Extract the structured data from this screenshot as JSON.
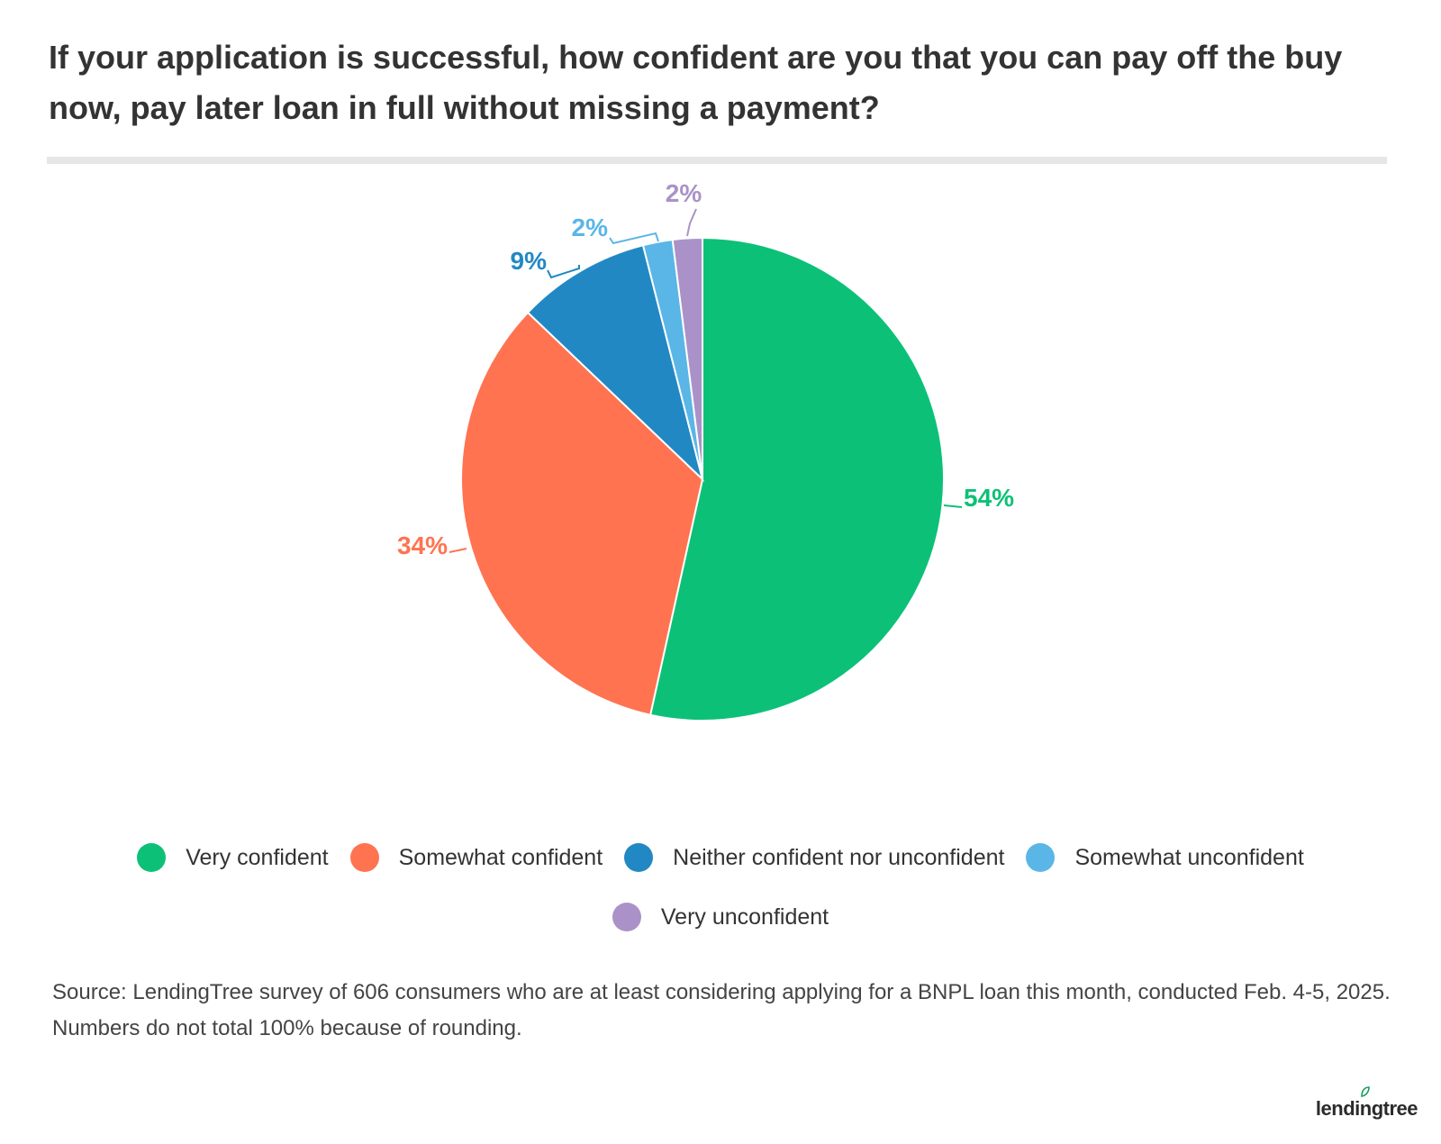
{
  "title": "If your application is successful, how confident are you that you can pay off the buy now, pay later loan in full without missing a payment?",
  "chart_data": {
    "type": "pie",
    "slices": [
      {
        "label": "Very confident",
        "value": 54,
        "display": "54%",
        "color": "#0cc177"
      },
      {
        "label": "Somewhat confident",
        "value": 34,
        "display": "34%",
        "color": "#ff7350"
      },
      {
        "label": "Neither confident nor unconfident",
        "value": 9,
        "display": "9%",
        "color": "#2188c4"
      },
      {
        "label": "Somewhat unconfident",
        "value": 2,
        "display": "2%",
        "color": "#5ab6e6"
      },
      {
        "label": "Very unconfident",
        "value": 2,
        "display": "2%",
        "color": "#aa92c8"
      }
    ],
    "legend_position": "bottom"
  },
  "source": "Source: LendingTree survey of 606 consumers who are at least considering applying for a BNPL loan this month, conducted Feb. 4-5, 2025. Numbers do not total 100% because of rounding.",
  "logo": "lendingtree",
  "colors": {
    "logo_leaf": "#1b9e5a"
  }
}
